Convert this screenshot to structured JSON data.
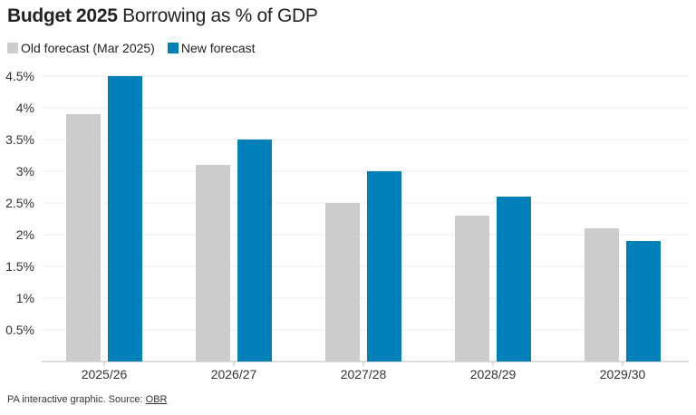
{
  "title_bold": "Budget 2025",
  "title_rest": " Borrowing as % of GDP",
  "source_prefix": "PA interactive graphic. Source: ",
  "source_link": "OBR",
  "chart_data": {
    "type": "bar",
    "categories": [
      "2025/26",
      "2026/27",
      "2027/28",
      "2028/29",
      "2029/30"
    ],
    "series": [
      {
        "name": "Old forecast (Mar 2025)",
        "color": "#cccccc",
        "values": [
          3.9,
          3.1,
          2.5,
          2.3,
          2.1
        ]
      },
      {
        "name": "New forecast",
        "color": "#0080b8",
        "values": [
          4.5,
          3.5,
          3.0,
          2.6,
          1.9
        ]
      }
    ],
    "yticks": [
      "0.5%",
      "1%",
      "1.5%",
      "2%",
      "2.5%",
      "3%",
      "3.5%",
      "4%",
      "4.5%"
    ],
    "ytick_values": [
      0.5,
      1,
      1.5,
      2,
      2.5,
      3,
      3.5,
      4,
      4.5
    ],
    "ylim": [
      0,
      4.5
    ],
    "grid": true,
    "legend": "top-left"
  }
}
